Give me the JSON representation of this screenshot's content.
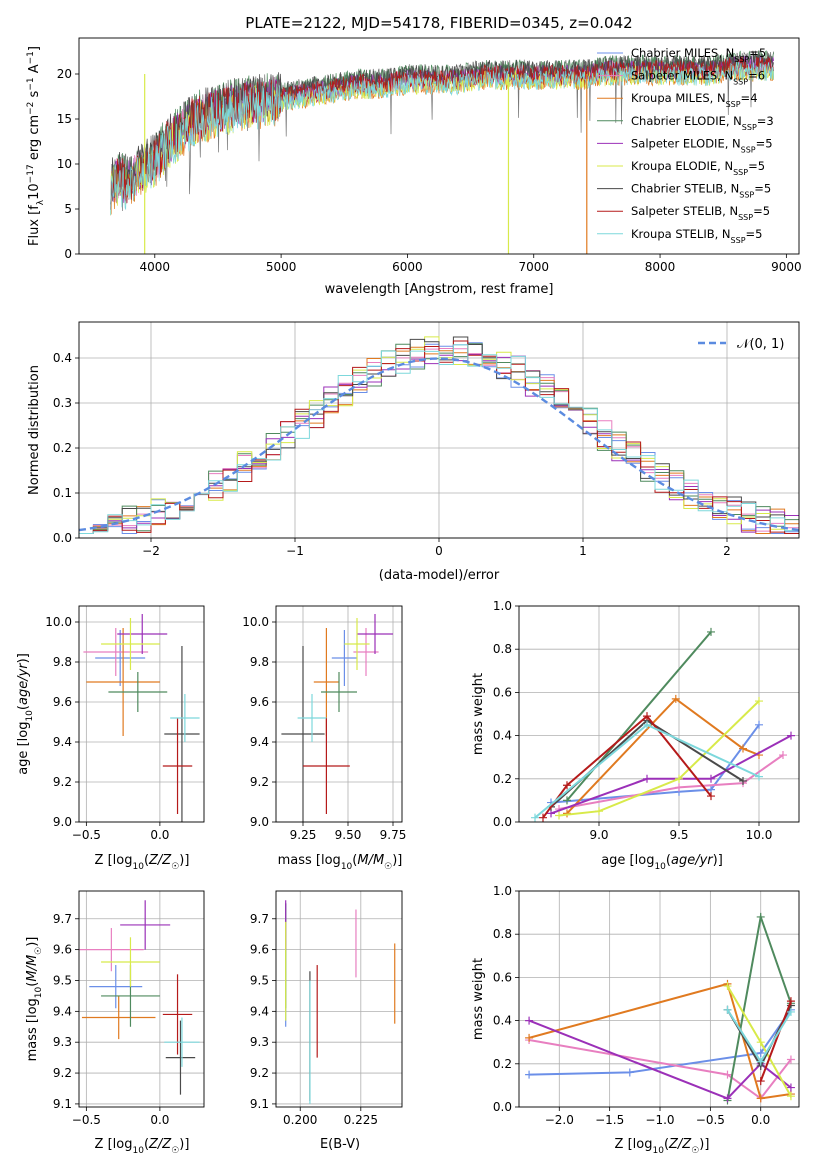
{
  "figure_title": "PLATE=2122, MJD=54178, FIBERID=0345, z=0.042",
  "models": [
    {
      "name": "Chabrier MILES",
      "nssp": "5",
      "color": "#6b8fe8"
    },
    {
      "name": "Salpeter MILES",
      "nssp": "6",
      "color": "#e87fc0"
    },
    {
      "name": "Kroupa MILES",
      "nssp": "4",
      "color": "#e07a20"
    },
    {
      "name": "Chabrier ELODIE",
      "nssp": "3",
      "color": "#4f8a5e"
    },
    {
      "name": "Salpeter ELODIE",
      "nssp": "5",
      "color": "#9b30b8"
    },
    {
      "name": "Kroupa ELODIE",
      "nssp": "5",
      "color": "#d8ea4a"
    },
    {
      "name": "Chabrier STELIB",
      "nssp": "5",
      "color": "#4a4a4a"
    },
    {
      "name": "Salpeter STELIB",
      "nssp": "5",
      "color": "#b51a1a"
    },
    {
      "name": "Kroupa STELIB",
      "nssp": "5",
      "color": "#7dd8dc"
    }
  ],
  "chart_data": [
    {
      "id": "spectrum",
      "type": "line",
      "xlabel": "wavelength [Angstrom, rest frame]",
      "ylabel": "Flux [f_λ 10^-17 erg cm^-2 s^-1 A^-1]",
      "xlim": [
        3400,
        9100
      ],
      "ylim": [
        0,
        24
      ],
      "xticks": [
        4000,
        5000,
        6000,
        7000,
        8000,
        9000
      ],
      "yticks": [
        0,
        5,
        10,
        15,
        20
      ],
      "legend_position": "right",
      "spectrum_envelope": {
        "x": [
          3650,
          3700,
          3800,
          3900,
          4000,
          4100,
          4200,
          4300,
          4400,
          4500,
          4600,
          4800,
          5000,
          5200,
          5400,
          5600,
          5800,
          6000,
          6200,
          6400,
          6600,
          6800,
          7000,
          7200,
          7400,
          7600,
          7800,
          8000,
          8200,
          8400,
          8600,
          8800
        ],
        "y": [
          8,
          9,
          8.5,
          10,
          11,
          13,
          14,
          15.5,
          16,
          16.5,
          17,
          17.5,
          18,
          18.5,
          19,
          19.5,
          19.5,
          20,
          20,
          20,
          20.5,
          20.5,
          20.5,
          20.5,
          20.5,
          21,
          21,
          21,
          21,
          21,
          21.5,
          21.5
        ]
      },
      "dropouts": [
        {
          "x": 3920,
          "series": "Kroupa ELODIE"
        },
        {
          "x": 6800,
          "series": "Kroupa ELODIE"
        },
        {
          "x": 7420,
          "series": "Kroupa MILES"
        }
      ]
    },
    {
      "id": "residual_histogram",
      "type": "line",
      "xlabel": "(data-model)/error",
      "ylabel": "Normed distribution",
      "xlim": [
        -2.5,
        2.5
      ],
      "ylim": [
        0,
        0.48
      ],
      "xticks": [
        -2,
        -1,
        0,
        1,
        2
      ],
      "yticks": [
        0.0,
        0.1,
        0.2,
        0.3,
        0.4
      ],
      "grid": true,
      "reference_curve": {
        "name": "𝒩(0, 1)",
        "style": "dashed"
      },
      "legend_position": "top-right"
    },
    {
      "id": "age_vs_Z",
      "type": "scatter",
      "xlabel": "Z [log10(Z/Z☉)]",
      "ylabel": "age [log10(age/yr)]",
      "xlim": [
        -0.55,
        0.3
      ],
      "ylim": [
        9.0,
        10.08
      ],
      "xticks": [
        -0.5,
        0.0
      ],
      "yticks": [
        9.0,
        9.2,
        9.4,
        9.6,
        9.8,
        10.0
      ],
      "grid": true,
      "points": [
        {
          "model": "Chabrier MILES",
          "x": -0.27,
          "xerr": 0.17,
          "y": 9.82,
          "yerr": 0.14
        },
        {
          "model": "Salpeter MILES",
          "x": -0.3,
          "xerr": 0.22,
          "y": 9.85,
          "yerr": 0.12
        },
        {
          "model": "Kroupa MILES",
          "x": -0.25,
          "xerr": 0.25,
          "y": 9.7,
          "yerr": 0.27
        },
        {
          "model": "Chabrier ELODIE",
          "x": -0.15,
          "xerr": 0.2,
          "y": 9.65,
          "yerr": 0.1
        },
        {
          "model": "Salpeter ELODIE",
          "x": -0.12,
          "xerr": 0.17,
          "y": 9.94,
          "yerr": 0.1
        },
        {
          "model": "Kroupa ELODIE",
          "x": -0.2,
          "xerr": 0.2,
          "y": 9.89,
          "yerr": 0.13
        },
        {
          "model": "Chabrier STELIB",
          "x": 0.15,
          "xerr": 0.12,
          "y": 9.44,
          "yerr": 0.44
        },
        {
          "model": "Salpeter STELIB",
          "x": 0.12,
          "xerr": 0.1,
          "y": 9.28,
          "yerr": 0.24
        },
        {
          "model": "Kroupa STELIB",
          "x": 0.17,
          "xerr": 0.1,
          "y": 9.52,
          "yerr": 0.12
        }
      ]
    },
    {
      "id": "age_vs_mass",
      "type": "scatter",
      "xlabel": "mass [log10(M/M☉)]",
      "xlim": [
        9.1,
        9.8
      ],
      "ylim": [
        9.0,
        10.08
      ],
      "xticks": [
        9.25,
        9.5,
        9.75
      ],
      "yticks": [
        9.0,
        9.2,
        9.4,
        9.6,
        9.8,
        10.0
      ],
      "grid": true,
      "points": [
        {
          "model": "Chabrier MILES",
          "x": 9.48,
          "xerr": 0.07,
          "y": 9.82,
          "yerr": 0.14
        },
        {
          "model": "Salpeter MILES",
          "x": 9.6,
          "xerr": 0.07,
          "y": 9.85,
          "yerr": 0.12
        },
        {
          "model": "Kroupa MILES",
          "x": 9.38,
          "xerr": 0.07,
          "y": 9.7,
          "yerr": 0.27
        },
        {
          "model": "Chabrier ELODIE",
          "x": 9.45,
          "xerr": 0.1,
          "y": 9.65,
          "yerr": 0.1
        },
        {
          "model": "Salpeter ELODIE",
          "x": 9.65,
          "xerr": 0.1,
          "y": 9.94,
          "yerr": 0.1
        },
        {
          "model": "Kroupa ELODIE",
          "x": 9.55,
          "xerr": 0.07,
          "y": 9.89,
          "yerr": 0.13
        },
        {
          "model": "Chabrier STELIB",
          "x": 9.25,
          "xerr": 0.12,
          "y": 9.44,
          "yerr": 0.44
        },
        {
          "model": "Salpeter STELIB",
          "x": 9.38,
          "xerr": 0.13,
          "y": 9.28,
          "yerr": 0.24
        },
        {
          "model": "Kroupa STELIB",
          "x": 9.3,
          "xerr": 0.08,
          "y": 9.52,
          "yerr": 0.12
        }
      ]
    },
    {
      "id": "weight_vs_age",
      "type": "line",
      "xlabel": "age [log10(age/yr)]",
      "ylabel": "mass weight",
      "xlim": [
        8.5,
        10.25
      ],
      "ylim": [
        0,
        1.0
      ],
      "xticks": [
        9.0,
        9.5,
        10.0
      ],
      "yticks": [
        0.0,
        0.2,
        0.4,
        0.6,
        0.8,
        1.0
      ],
      "grid": true,
      "series": [
        {
          "model": "Chabrier MILES",
          "x": [
            8.7,
            9.5,
            9.7,
            10.0
          ],
          "y": [
            0.09,
            0.14,
            0.15,
            0.45
          ]
        },
        {
          "model": "Salpeter MILES",
          "x": [
            8.75,
            9.5,
            9.9,
            10.15
          ],
          "y": [
            0.06,
            0.16,
            0.18,
            0.31
          ]
        },
        {
          "model": "Kroupa MILES",
          "x": [
            8.8,
            9.48,
            9.9,
            10.0
          ],
          "y": [
            0.04,
            0.57,
            0.34,
            0.31
          ]
        },
        {
          "model": "Chabrier ELODIE",
          "x": [
            8.8,
            9.7
          ],
          "y": [
            0.1,
            0.88
          ]
        },
        {
          "model": "Salpeter ELODIE",
          "x": [
            8.7,
            9.3,
            9.7,
            10.2
          ],
          "y": [
            0.04,
            0.2,
            0.2,
            0.4
          ]
        },
        {
          "model": "Kroupa ELODIE",
          "x": [
            8.75,
            9.0,
            9.5,
            10.0
          ],
          "y": [
            0.03,
            0.05,
            0.2,
            0.56
          ]
        },
        {
          "model": "Chabrier STELIB",
          "x": [
            8.7,
            9.3,
            9.9
          ],
          "y": [
            0.07,
            0.47,
            0.19
          ]
        },
        {
          "model": "Salpeter STELIB",
          "x": [
            8.65,
            8.8,
            9.3,
            9.7
          ],
          "y": [
            0.02,
            0.17,
            0.49,
            0.12
          ]
        },
        {
          "model": "Kroupa STELIB",
          "x": [
            8.6,
            9.3,
            10.0
          ],
          "y": [
            0.02,
            0.45,
            0.21
          ]
        }
      ]
    },
    {
      "id": "mass_vs_Z",
      "type": "scatter",
      "xlabel": "Z [log10(Z/Z☉)]",
      "ylabel": "mass [log10(M/M☉)]",
      "xlim": [
        -0.55,
        0.3
      ],
      "ylim": [
        9.09,
        9.79
      ],
      "xticks": [
        -0.5,
        0.0
      ],
      "yticks": [
        9.1,
        9.2,
        9.3,
        9.4,
        9.5,
        9.6,
        9.7
      ],
      "grid": true,
      "points": [
        {
          "model": "Chabrier MILES",
          "x": -0.3,
          "xerr": 0.18,
          "y": 9.48,
          "yerr": 0.07
        },
        {
          "model": "Salpeter MILES",
          "x": -0.33,
          "xerr": 0.22,
          "y": 9.6,
          "yerr": 0.07
        },
        {
          "model": "Kroupa MILES",
          "x": -0.28,
          "xerr": 0.25,
          "y": 9.38,
          "yerr": 0.07
        },
        {
          "model": "Chabrier ELODIE",
          "x": -0.2,
          "xerr": 0.2,
          "y": 9.45,
          "yerr": 0.1
        },
        {
          "model": "Salpeter ELODIE",
          "x": -0.1,
          "xerr": 0.17,
          "y": 9.68,
          "yerr": 0.08
        },
        {
          "model": "Kroupa ELODIE",
          "x": -0.2,
          "xerr": 0.2,
          "y": 9.56,
          "yerr": 0.08
        },
        {
          "model": "Chabrier STELIB",
          "x": 0.14,
          "xerr": 0.1,
          "y": 9.25,
          "yerr": 0.12
        },
        {
          "model": "Salpeter STELIB",
          "x": 0.12,
          "xerr": 0.1,
          "y": 9.39,
          "yerr": 0.13
        },
        {
          "model": "Kroupa STELIB",
          "x": 0.15,
          "xerr": 0.12,
          "y": 9.3,
          "yerr": 0.08
        }
      ]
    },
    {
      "id": "mass_vs_EBV",
      "type": "scatter",
      "xlabel": "E(B-V)",
      "xlim": [
        0.19,
        0.242
      ],
      "ylim": [
        9.09,
        9.79
      ],
      "xticks": [
        0.2,
        0.225
      ],
      "yticks": [
        9.1,
        9.2,
        9.3,
        9.4,
        9.5,
        9.6,
        9.7
      ],
      "grid": true,
      "points": [
        {
          "model": "Chabrier MILES",
          "x": 0.194,
          "y": 9.55,
          "yerr": 0.2
        },
        {
          "model": "Salpeter MILES",
          "x": 0.223,
          "y": 9.62,
          "yerr": 0.11
        },
        {
          "model": "Kroupa MILES",
          "x": 0.239,
          "y": 9.49,
          "yerr": 0.13
        },
        {
          "model": "Chabrier ELODIE",
          "x": 0.194,
          "y": 9.58,
          "yerr": 0.17
        },
        {
          "model": "Salpeter ELODIE",
          "x": 0.194,
          "y": 9.68,
          "yerr": 0.08
        },
        {
          "model": "Kroupa ELODIE",
          "x": 0.194,
          "y": 9.53,
          "yerr": 0.16
        },
        {
          "model": "Chabrier STELIB",
          "x": 0.204,
          "y": 9.32,
          "yerr": 0.21
        },
        {
          "model": "Salpeter STELIB",
          "x": 0.207,
          "y": 9.4,
          "yerr": 0.15
        },
        {
          "model": "Kroupa STELIB",
          "x": 0.204,
          "y": 9.3,
          "yerr": 0.2
        }
      ]
    },
    {
      "id": "weight_vs_Z",
      "type": "line",
      "xlabel": "Z [log10(Z/Z☉)]",
      "ylabel": "mass weight",
      "xlim": [
        -2.4,
        0.38
      ],
      "ylim": [
        0,
        1.0
      ],
      "xticks": [
        -2.0,
        -1.5,
        -1.0,
        -0.5,
        0.0
      ],
      "yticks": [
        0.0,
        0.2,
        0.4,
        0.6,
        0.8,
        1.0
      ],
      "grid": true,
      "series": [
        {
          "model": "Chabrier MILES",
          "x": [
            -2.3,
            -1.3,
            0.0,
            0.3
          ],
          "y": [
            0.15,
            0.16,
            0.25,
            0.45
          ]
        },
        {
          "model": "Salpeter MILES",
          "x": [
            -2.3,
            -0.33,
            0.0,
            0.3
          ],
          "y": [
            0.31,
            0.15,
            0.04,
            0.22
          ]
        },
        {
          "model": "Kroupa MILES",
          "x": [
            -2.3,
            -0.33,
            0.0,
            0.3
          ],
          "y": [
            0.32,
            0.57,
            0.04,
            0.06
          ]
        },
        {
          "model": "Chabrier ELODIE",
          "x": [
            -0.33,
            0.0,
            0.3
          ],
          "y": [
            0.03,
            0.88,
            0.48
          ]
        },
        {
          "model": "Salpeter ELODIE",
          "x": [
            -2.3,
            -0.33,
            0.0,
            0.3
          ],
          "y": [
            0.4,
            0.04,
            0.2,
            0.09
          ]
        },
        {
          "model": "Kroupa ELODIE",
          "x": [
            -0.33,
            0.0,
            0.3
          ],
          "y": [
            0.56,
            0.3,
            0.05
          ]
        },
        {
          "model": "Chabrier STELIB",
          "x": [
            -0.33,
            0.0,
            0.3
          ],
          "y": [
            0.45,
            0.19,
            0.47
          ]
        },
        {
          "model": "Salpeter STELIB",
          "x": [
            0.0,
            0.3
          ],
          "y": [
            0.12,
            0.49
          ]
        },
        {
          "model": "Kroupa STELIB",
          "x": [
            -0.33,
            0.0,
            0.3
          ],
          "y": [
            0.45,
            0.21,
            0.44
          ]
        }
      ]
    }
  ]
}
